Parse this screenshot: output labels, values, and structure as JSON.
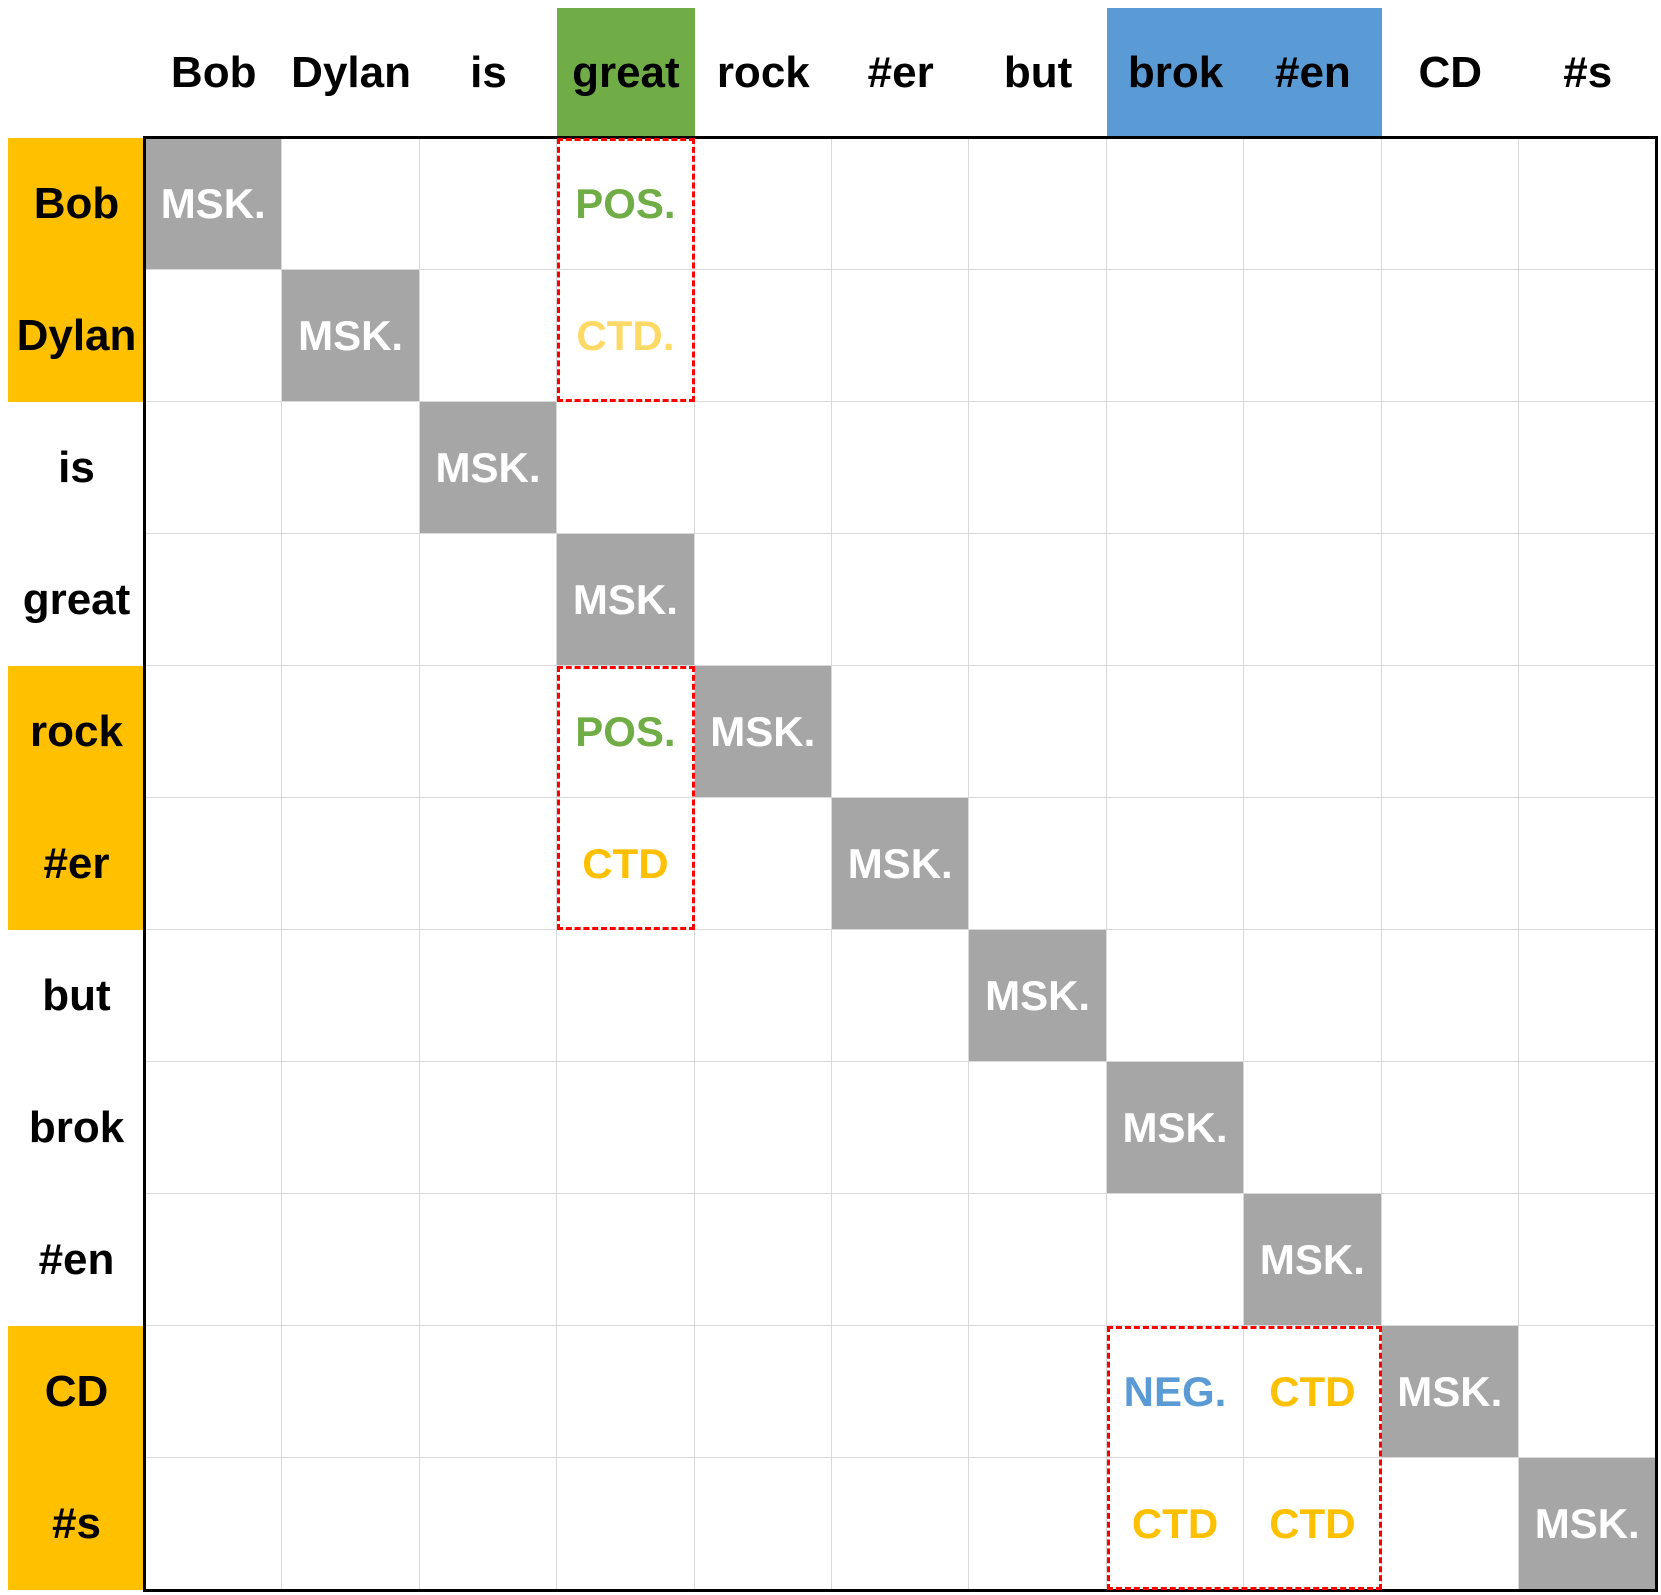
{
  "tokens": [
    "Bob",
    "Dylan",
    "is",
    "great",
    "rock",
    "#er",
    "but",
    "brok",
    "#en",
    "CD",
    "#s"
  ],
  "column_highlights": [
    {
      "cols": [
        3
      ],
      "color": "#70AD47"
    },
    {
      "cols": [
        7,
        8
      ],
      "color": "#5B9BD5"
    }
  ],
  "row_highlights": [
    {
      "rows": [
        0,
        1
      ],
      "color": "#FFC000"
    },
    {
      "rows": [
        4,
        5
      ],
      "color": "#FFC000"
    },
    {
      "rows": [
        9,
        10
      ],
      "color": "#FFC000"
    }
  ],
  "diagonal": {
    "label": "MSK.",
    "color": "#A6A6A6",
    "text_color": "#FFFFFF"
  },
  "labels": [
    {
      "row": 0,
      "col": 3,
      "text": "POS.",
      "color": "#70AD47"
    },
    {
      "row": 1,
      "col": 3,
      "text": "CTD.",
      "color": "#FFD966"
    },
    {
      "row": 4,
      "col": 3,
      "text": "POS.",
      "color": "#70AD47"
    },
    {
      "row": 5,
      "col": 3,
      "text": "CTD",
      "color": "#FFC000"
    },
    {
      "row": 9,
      "col": 7,
      "text": "NEG.",
      "color": "#5B9BD5"
    },
    {
      "row": 9,
      "col": 8,
      "text": "CTD",
      "color": "#FFC000"
    },
    {
      "row": 10,
      "col": 7,
      "text": "CTD",
      "color": "#FFC000"
    },
    {
      "row": 10,
      "col": 8,
      "text": "CTD",
      "color": "#FFC000"
    }
  ],
  "dashed_boxes": [
    {
      "rows": [
        0,
        1
      ],
      "cols": [
        3,
        3
      ]
    },
    {
      "rows": [
        4,
        5
      ],
      "cols": [
        3,
        3
      ]
    },
    {
      "rows": [
        9,
        10
      ],
      "cols": [
        7,
        8
      ]
    }
  ],
  "dash_color": "#FF0000"
}
